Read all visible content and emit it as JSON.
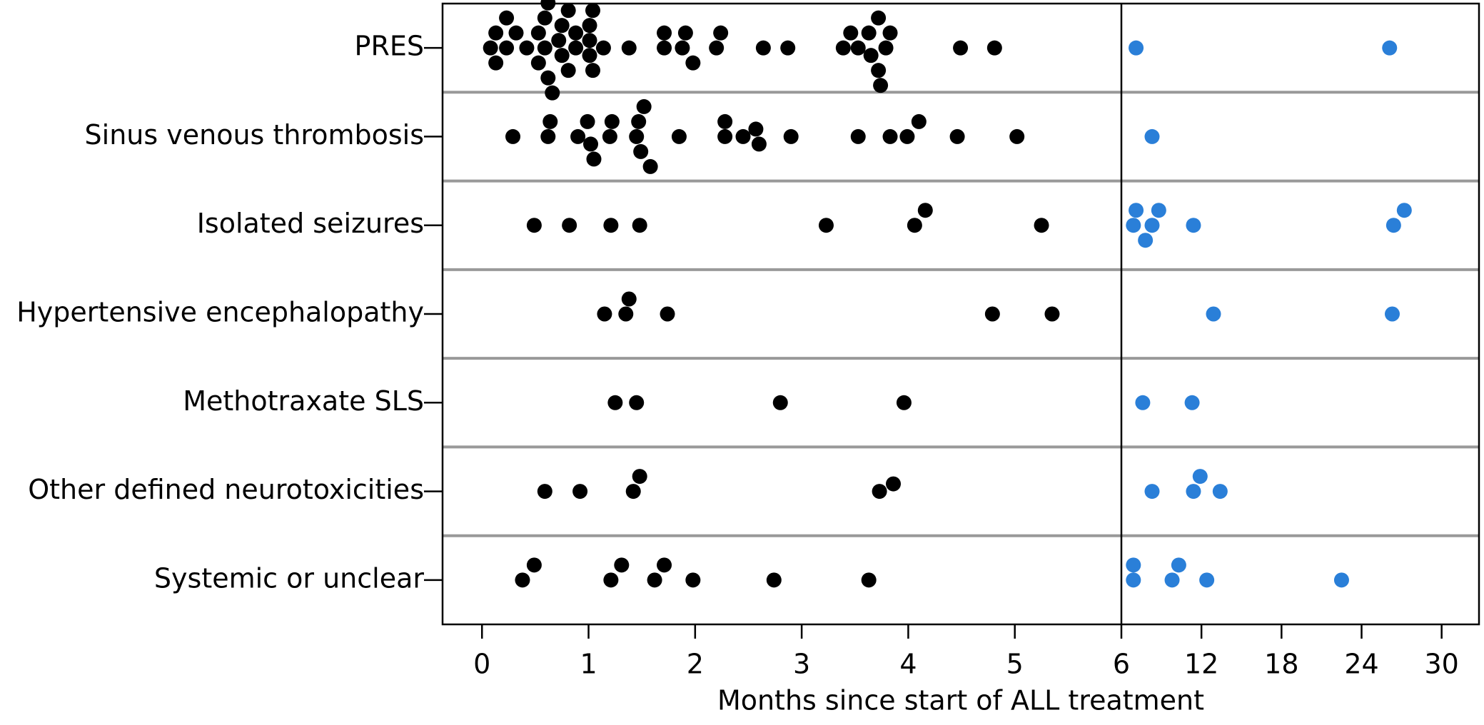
{
  "chart_data": {
    "type": "strip",
    "categories": [
      "PRES",
      "Sinus venous thrombosis",
      "Isolated seizures",
      "Hypertensive encephalopathy",
      "Methotraxate SLS",
      "Other defined neurotoxicities",
      "Systemic or unclear"
    ],
    "series": [
      {
        "color": "#000000",
        "values": [
          [
            0.08,
            0.13,
            0.13,
            0.23,
            0.23,
            0.32,
            0.42,
            0.53,
            0.53,
            0.59,
            0.59,
            0.62,
            0.62,
            0.66,
            0.72,
            0.75,
            0.75,
            0.81,
            0.81,
            0.88,
            0.88,
            1.01,
            1.01,
            1.01,
            1.04,
            1.04,
            1.14,
            1.38,
            1.71,
            1.71,
            1.88,
            1.91,
            1.98,
            2.2,
            2.24,
            2.64,
            2.87,
            3.39,
            3.46,
            3.53,
            3.63,
            3.65,
            3.72,
            3.72,
            3.74,
            3.79,
            3.83,
            4.49,
            4.81
          ],
          [
            0.29,
            0.62,
            0.64,
            0.9,
            0.99,
            1.02,
            1.05,
            1.2,
            1.22,
            1.45,
            1.47,
            1.49,
            1.52,
            1.58,
            1.85,
            2.28,
            2.28,
            2.45,
            2.57,
            2.6,
            2.9,
            3.53,
            3.83,
            3.99,
            4.1,
            4.46,
            5.02
          ],
          [
            0.49,
            0.82,
            1.21,
            1.48,
            3.23,
            4.06,
            4.16,
            5.25
          ],
          [
            1.15,
            1.35,
            1.38,
            1.74,
            4.79,
            5.35
          ],
          [
            1.25,
            1.45,
            2.8,
            3.96
          ],
          [
            0.59,
            0.92,
            1.42,
            1.48,
            3.73,
            3.86
          ],
          [
            0.38,
            0.49,
            1.21,
            1.31,
            1.62,
            1.71,
            1.98,
            2.74,
            3.63
          ]
        ]
      },
      {
        "color": "#2a7fd8",
        "axis": "x2",
        "values": [
          [
            7.1,
            26.1
          ],
          [
            8.3
          ],
          [
            6.9,
            7.1,
            7.8,
            8.3,
            8.8,
            11.4,
            26.4,
            27.2
          ],
          [
            12.9,
            26.3
          ],
          [
            7.6,
            11.3
          ],
          [
            8.3,
            11.4,
            11.9,
            13.4
          ],
          [
            6.9,
            6.9,
            9.8,
            10.3,
            12.4,
            22.5
          ]
        ]
      }
    ],
    "xlim": [
      -0.37,
      6
    ],
    "xticks": [
      0,
      1,
      2,
      3,
      4,
      5
    ],
    "x2lim": [
      6,
      32.8
    ],
    "x2ticks": [
      6,
      12,
      18,
      24,
      30
    ],
    "xlabel": "Months since start of ALL treatment",
    "grid": true
  }
}
